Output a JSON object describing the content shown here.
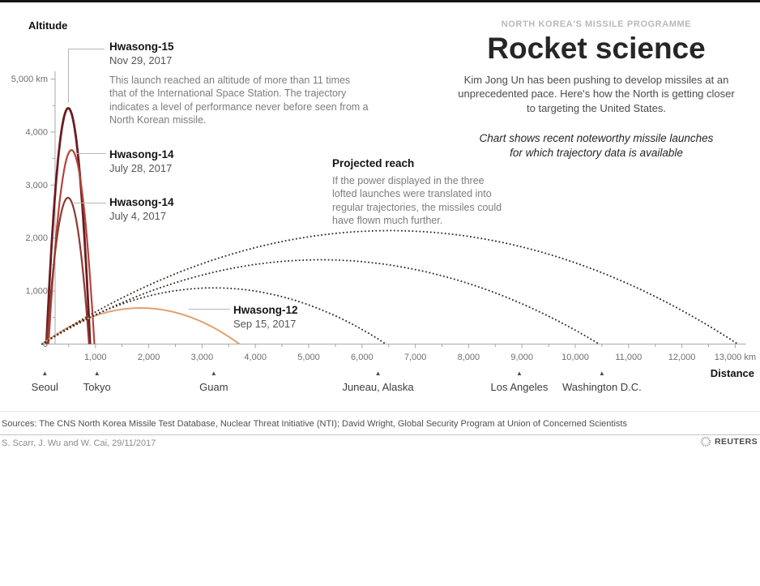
{
  "header": {
    "kicker": "NORTH KOREA'S MISSILE PROGRAMME",
    "title": "Rocket science",
    "intro": "Kim Jong Un has been pushing to develop missiles at an unprecedented pace. Here's how the North is getting closer to targeting the United States.",
    "note": "Chart shows recent noteworthy missile launches for which trajectory data is available"
  },
  "annotations": {
    "hwasong15": {
      "name": "Hwasong-15",
      "date": "Nov 29, 2017",
      "body": "This launch reached an altitude of more than 11 times that of the International Space Station. The trajectory indicates a level of performance never before seen from a North Korean missile."
    },
    "hwasong14_jul28": {
      "name": "Hwasong-14",
      "date": "July 28, 2017"
    },
    "hwasong14_jul4": {
      "name": "Hwasong-14",
      "date": "July 4, 2017"
    },
    "hwasong12": {
      "name": "Hwasong-12",
      "date": "Sep 15, 2017"
    },
    "projected": {
      "title": "Projected reach",
      "body": "If the power displayed in the three lofted launches were translated into regular trajectories, the missiles could have flown much further."
    }
  },
  "chart_data": {
    "type": "line",
    "xlabel": "Distance",
    "ylabel": "Altitude",
    "x_unit": "km",
    "xlim": [
      0,
      13200
    ],
    "ylim": [
      0,
      5000
    ],
    "grid": false,
    "x_ticks": [
      {
        "km": 1000,
        "label": "1,000"
      },
      {
        "km": 2000,
        "label": "2,000"
      },
      {
        "km": 3000,
        "label": "3,000"
      },
      {
        "km": 4000,
        "label": "4,000"
      },
      {
        "km": 5000,
        "label": "5,000"
      },
      {
        "km": 6000,
        "label": "6,000"
      },
      {
        "km": 7000,
        "label": "7,000"
      },
      {
        "km": 8000,
        "label": "8,000"
      },
      {
        "km": 9000,
        "label": "9,000"
      },
      {
        "km": 10000,
        "label": "10,000"
      },
      {
        "km": 11000,
        "label": "11,000"
      },
      {
        "km": 12000,
        "label": "12,000"
      },
      {
        "km": 13000,
        "label": "13,000 km"
      }
    ],
    "y_ticks": [
      {
        "km": 0,
        "label": "0"
      },
      {
        "km": 1000,
        "label": "1,000"
      },
      {
        "km": 2000,
        "label": "2,000"
      },
      {
        "km": 3000,
        "label": "3,000"
      },
      {
        "km": 4000,
        "label": "4,000"
      },
      {
        "km": 5000,
        "label": "5,000 km"
      }
    ],
    "minor_tick_step_km": 500,
    "series": [
      {
        "id": "hwasong-15",
        "name": "Hwasong-15",
        "date": "Nov 29, 2017",
        "style": "solid",
        "color": "#6d1a1f",
        "weight": 2.8,
        "start_km": 80,
        "end_km": 900,
        "apogee_km": 4450
      },
      {
        "id": "hwasong-14-jul28",
        "name": "Hwasong-14",
        "date": "July 28, 2017",
        "style": "solid",
        "color": "#b2453c",
        "weight": 2.2,
        "start_km": 120,
        "end_km": 980,
        "apogee_km": 3660
      },
      {
        "id": "hwasong-14-jul4",
        "name": "Hwasong-14",
        "date": "July 4, 2017",
        "style": "solid",
        "color": "#8f3a2f",
        "weight": 2.2,
        "start_km": 90,
        "end_km": 880,
        "apogee_km": 2760
      },
      {
        "id": "hwasong-12",
        "name": "Hwasong-12",
        "date": "Sep 15, 2017",
        "style": "solid",
        "color": "#e3a06c",
        "weight": 2,
        "start_km": 0,
        "end_km": 3700,
        "apogee_km": 680
      },
      {
        "id": "projected-hwasong-14-jul4",
        "name": "Projected reach (Hwasong-14, July 4)",
        "style": "dotted",
        "color": "#3c2e28",
        "weight": 2,
        "start_km": 0,
        "end_km": 6450,
        "apogee_km": 1060
      },
      {
        "id": "projected-hwasong-14-jul28",
        "name": "Projected reach (Hwasong-14, July 28)",
        "style": "dotted",
        "color": "#3c2e28",
        "weight": 2,
        "start_km": 0,
        "end_km": 10450,
        "apogee_km": 1590
      },
      {
        "id": "projected-hwasong-15",
        "name": "Projected reach (Hwasong-15)",
        "style": "dotted",
        "color": "#3c2e28",
        "weight": 2,
        "start_km": 0,
        "end_km": 13050,
        "apogee_km": 2140
      }
    ],
    "cities": [
      {
        "name": "Seoul",
        "km": 50
      },
      {
        "name": "Tokyo",
        "km": 1030
      },
      {
        "name": "Guam",
        "km": 3220
      },
      {
        "name": "Juneau, Alaska",
        "km": 6300
      },
      {
        "name": "Los Angeles",
        "km": 8950
      },
      {
        "name": "Washington D.C.",
        "km": 10500
      }
    ]
  },
  "footer": {
    "sources": "Sources: The CNS North Korea Missile Test Database, Nuclear Threat Initiative (NTI); David Wright, Global Security Program at Union of Concerned Scientists",
    "credit": "S. Scarr, J. Wu and W. Cai,  29/11/2017",
    "logo": "REUTERS"
  }
}
